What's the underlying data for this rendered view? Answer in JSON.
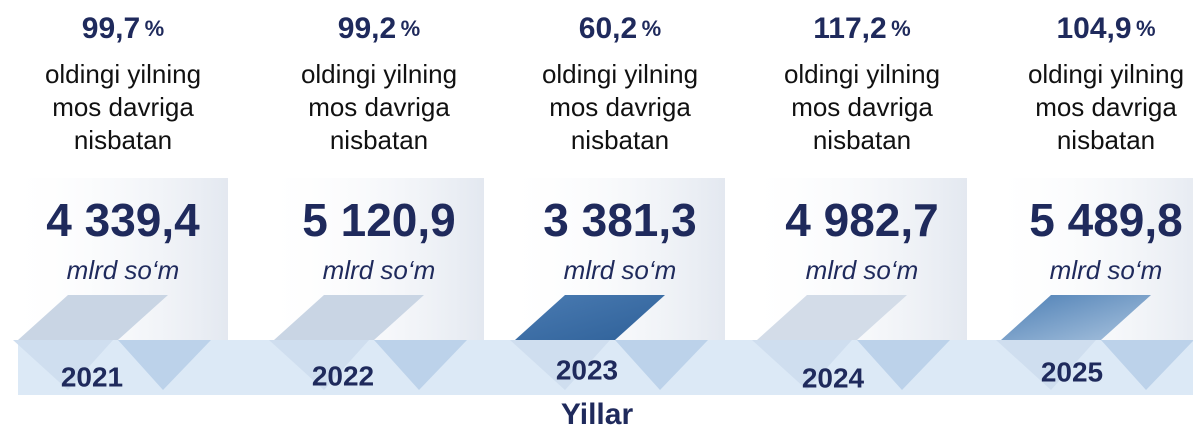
{
  "items": [
    {
      "percent": "99,7",
      "percent_unit": "%",
      "caption": [
        "oldingi yilning",
        "mos davriga",
        "nisbatan"
      ],
      "value": "4 339,4",
      "unit": "mlrd so‘m",
      "year": "2021"
    },
    {
      "percent": "99,2",
      "percent_unit": "%",
      "caption": [
        "oldingi yilning",
        "mos davriga",
        "nisbatan"
      ],
      "value": "5 120,9",
      "unit": "mlrd so‘m",
      "year": "2022"
    },
    {
      "percent": "60,2",
      "percent_unit": "%",
      "caption": [
        "oldingi yilning",
        "mos davriga",
        "nisbatan"
      ],
      "value": "3 381,3",
      "unit": "mlrd so‘m",
      "year": "2023"
    },
    {
      "percent": "117,2",
      "percent_unit": "%",
      "caption": [
        "oldingi yilning",
        "mos davriga",
        "nisbatan"
      ],
      "value": "4 982,7",
      "unit": "mlrd so‘m",
      "year": "2024"
    },
    {
      "percent": "104,9",
      "percent_unit": "%",
      "caption": [
        "oldingi yilning",
        "mos davriga",
        "nisbatan"
      ],
      "value": "5 489,8",
      "unit": "mlrd so‘m",
      "year": "2025"
    }
  ],
  "axis_label": "Yillar"
}
